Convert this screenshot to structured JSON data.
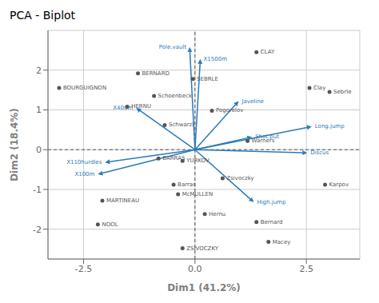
{
  "chart_data": {
    "type": "biplot",
    "title": "PCA - Biplot",
    "xlabel": "Dim1 (41.2%)",
    "ylabel": "Dim2 (18.4%)",
    "xlim": [
      -3.3,
      3.7
    ],
    "ylim": [
      -2.75,
      3.0
    ],
    "xticks": [
      -2.5,
      {
        "value": 0,
        "label": "0.0"
      },
      2.5
    ],
    "yticks": [
      -2,
      -1,
      0,
      1,
      2
    ],
    "grid": true,
    "series": [
      {
        "type": "scatter",
        "color": "#555555",
        "points": [
          {
            "name": "CLAY",
            "x": 1.38,
            "y": 2.45
          },
          {
            "name": "BOURGUIGNON",
            "x": -3.05,
            "y": 1.55
          },
          {
            "name": "BERNARD",
            "x": -1.28,
            "y": 1.92
          },
          {
            "name": "SEBRLE",
            "x": -0.05,
            "y": 1.78
          },
          {
            "name": "Schoenbeck",
            "x": -0.92,
            "y": 1.35
          },
          {
            "name": "HERNU",
            "x": -1.52,
            "y": 1.08
          },
          {
            "name": "Clay",
            "x": 2.57,
            "y": 1.55
          },
          {
            "name": "Sebrle",
            "x": 3.02,
            "y": 1.45
          },
          {
            "name": "Pogorelov",
            "x": 0.38,
            "y": 0.98
          },
          {
            "name": "Schwarzl",
            "x": -0.68,
            "y": 0.62
          },
          {
            "name": "Warners",
            "x": 1.18,
            "y": 0.22
          },
          {
            "name": "YURKOV",
            "x": -0.28,
            "y": -0.28
          },
          {
            "name": "BARRAS",
            "x": -0.82,
            "y": -0.22
          },
          {
            "name": "Zsivoczky",
            "x": 0.62,
            "y": -0.72
          },
          {
            "name": "Barras",
            "x": -0.48,
            "y": -0.88
          },
          {
            "name": "McMULLEN",
            "x": -0.38,
            "y": -1.12
          },
          {
            "name": "Karpov",
            "x": 2.92,
            "y": -0.88
          },
          {
            "name": "MARTINEAU",
            "x": -2.08,
            "y": -1.28
          },
          {
            "name": "Hernu",
            "x": 0.22,
            "y": -1.62
          },
          {
            "name": "NOOL",
            "x": -2.18,
            "y": -1.88
          },
          {
            "name": "Bernard",
            "x": 1.38,
            "y": -1.82
          },
          {
            "name": "ZSIVOCZKY",
            "x": -0.28,
            "y": -2.48
          },
          {
            "name": "Macey",
            "x": 1.65,
            "y": -2.32
          }
        ]
      },
      {
        "type": "arrow",
        "color": "#2b7bb9",
        "points": [
          {
            "name": "Pole.vault",
            "x": -0.12,
            "y": 2.58
          },
          {
            "name": "X1500m",
            "x": 0.12,
            "y": 2.28
          },
          {
            "name": "Javeline",
            "x": 0.98,
            "y": 1.22
          },
          {
            "name": "X400m",
            "x": -1.32,
            "y": 1.05
          },
          {
            "name": "Long.jump",
            "x": 2.62,
            "y": 0.58
          },
          {
            "name": "Shot.put",
            "x": 1.28,
            "y": 0.32
          },
          {
            "name": "Discus",
            "x": 2.52,
            "y": -0.08
          },
          {
            "name": "X110hurdles",
            "x": -2.02,
            "y": -0.32
          },
          {
            "name": "X100m",
            "x": -2.18,
            "y": -0.62
          },
          {
            "name": "High.jump",
            "x": 1.32,
            "y": -1.32
          }
        ]
      }
    ]
  }
}
